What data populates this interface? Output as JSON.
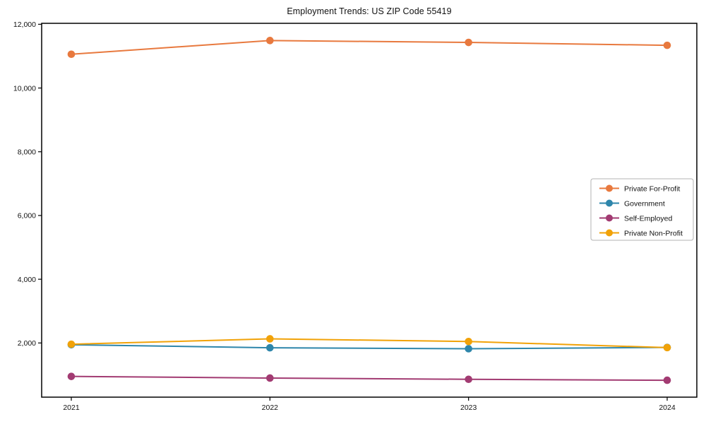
{
  "chart_data": {
    "type": "line",
    "title": "Employment Trends: US ZIP Code 55419",
    "xlabel": "",
    "ylabel": "",
    "categories": [
      "2021",
      "2022",
      "2023",
      "2024"
    ],
    "series": [
      {
        "name": "Private For-Profit",
        "color": "#E8793E",
        "values": [
          11060,
          11490,
          11430,
          11340
        ]
      },
      {
        "name": "Government",
        "color": "#2E86AB",
        "values": [
          1945,
          1850,
          1820,
          1860
        ]
      },
      {
        "name": "Self-Employed",
        "color": "#A23B72",
        "values": [
          950,
          900,
          860,
          830
        ]
      },
      {
        "name": "Private Non-Profit",
        "color": "#F1A208",
        "values": [
          1960,
          2130,
          2045,
          1855
        ]
      }
    ],
    "ylim": [
      300,
      12030
    ],
    "yticks": [
      2000,
      4000,
      6000,
      8000,
      10000,
      12000
    ],
    "ytick_labels": [
      "2,000",
      "4,000",
      "6,000",
      "8,000",
      "10,000",
      "12,000"
    ],
    "legend_position": "center-right",
    "grid": false,
    "marker": "circle",
    "axis_color": "#000000",
    "tick_label_color": "#111111",
    "legend_border_color": "#b3b3b3"
  }
}
